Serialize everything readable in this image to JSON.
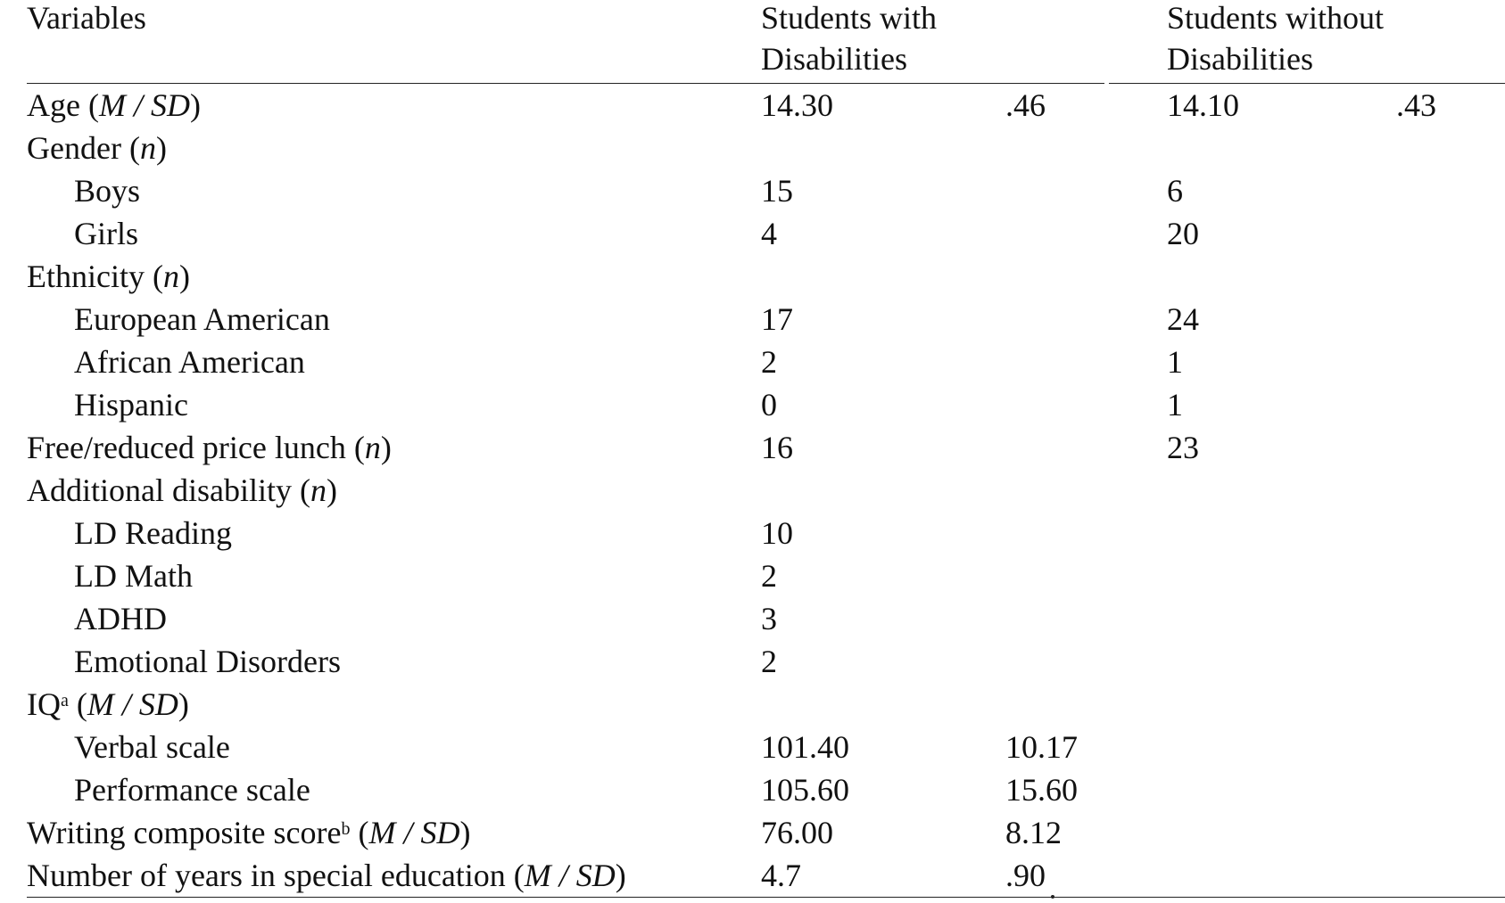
{
  "header": {
    "variables": "Variables",
    "group1_line1": "Students with",
    "group1_line2": "Disabilities",
    "group2_line1": "Students without",
    "group2_line2": "Disabilities"
  },
  "rows": [
    {
      "label_pre": "Age (",
      "label_ital": "M / SD",
      "label_post": ")",
      "sup": "",
      "indent": false,
      "v1": "14.30",
      "s1": ".46",
      "v2": "14.10",
      "s2": ".43"
    },
    {
      "label_pre": "Gender (",
      "label_ital": "n",
      "label_post": ")",
      "sup": "",
      "indent": false,
      "v1": "",
      "s1": "",
      "v2": "",
      "s2": ""
    },
    {
      "label_pre": "Boys",
      "label_ital": "",
      "label_post": "",
      "sup": "",
      "indent": true,
      "v1": "15",
      "s1": "",
      "v2": "6",
      "s2": ""
    },
    {
      "label_pre": "Girls",
      "label_ital": "",
      "label_post": "",
      "sup": "",
      "indent": true,
      "v1": "4",
      "s1": "",
      "v2": "20",
      "s2": ""
    },
    {
      "label_pre": "Ethnicity (",
      "label_ital": "n",
      "label_post": ")",
      "sup": "",
      "indent": false,
      "v1": "",
      "s1": "",
      "v2": "",
      "s2": ""
    },
    {
      "label_pre": "European American",
      "label_ital": "",
      "label_post": "",
      "sup": "",
      "indent": true,
      "v1": "17",
      "s1": "",
      "v2": "24",
      "s2": ""
    },
    {
      "label_pre": "African American",
      "label_ital": "",
      "label_post": "",
      "sup": "",
      "indent": true,
      "v1": "2",
      "s1": "",
      "v2": "1",
      "s2": ""
    },
    {
      "label_pre": "Hispanic",
      "label_ital": "",
      "label_post": "",
      "sup": "",
      "indent": true,
      "v1": "0",
      "s1": "",
      "v2": "1",
      "s2": ""
    },
    {
      "label_pre": "Free/reduced price lunch (",
      "label_ital": "n",
      "label_post": ")",
      "sup": "",
      "indent": false,
      "v1": "16",
      "s1": "",
      "v2": "23",
      "s2": ""
    },
    {
      "label_pre": "Additional disability (",
      "label_ital": "n",
      "label_post": ")",
      "sup": "",
      "indent": false,
      "v1": "",
      "s1": "",
      "v2": "",
      "s2": ""
    },
    {
      "label_pre": "LD Reading",
      "label_ital": "",
      "label_post": "",
      "sup": "",
      "indent": true,
      "v1": "10",
      "s1": "",
      "v2": "",
      "s2": ""
    },
    {
      "label_pre": "LD Math",
      "label_ital": "",
      "label_post": "",
      "sup": "",
      "indent": true,
      "v1": "2",
      "s1": "",
      "v2": "",
      "s2": ""
    },
    {
      "label_pre": "ADHD",
      "label_ital": "",
      "label_post": "",
      "sup": "",
      "indent": true,
      "v1": "3",
      "s1": "",
      "v2": "",
      "s2": ""
    },
    {
      "label_pre": "Emotional Disorders",
      "label_ital": "",
      "label_post": "",
      "sup": "",
      "indent": true,
      "v1": "2",
      "s1": "",
      "v2": "",
      "s2": ""
    },
    {
      "label_pre": "IQ",
      "sup": "a",
      "label_mid": " (",
      "label_ital": "M / SD",
      "label_post": ")",
      "indent": false,
      "v1": "",
      "s1": "",
      "v2": "",
      "s2": ""
    },
    {
      "label_pre": "Verbal scale",
      "label_ital": "",
      "label_post": "",
      "sup": "",
      "indent": true,
      "v1": "101.40",
      "s1": "10.17",
      "v2": "",
      "s2": ""
    },
    {
      "label_pre": "Performance scale",
      "label_ital": "",
      "label_post": "",
      "sup": "",
      "indent": true,
      "v1": "105.60",
      "s1": "15.60",
      "v2": "",
      "s2": ""
    },
    {
      "label_pre": "Writing composite score",
      "sup": "b",
      "label_mid": " (",
      "label_ital": "M / SD",
      "label_post": ")",
      "indent": false,
      "v1": "76.00",
      "s1": "8.12",
      "v2": "",
      "s2": ""
    },
    {
      "label_pre": "Number of years in special education (",
      "label_ital": "M / SD",
      "label_post": ")",
      "sup": "",
      "indent": false,
      "v1": "4.7",
      "s1": ".90",
      "v2": "",
      "s2": ""
    }
  ]
}
